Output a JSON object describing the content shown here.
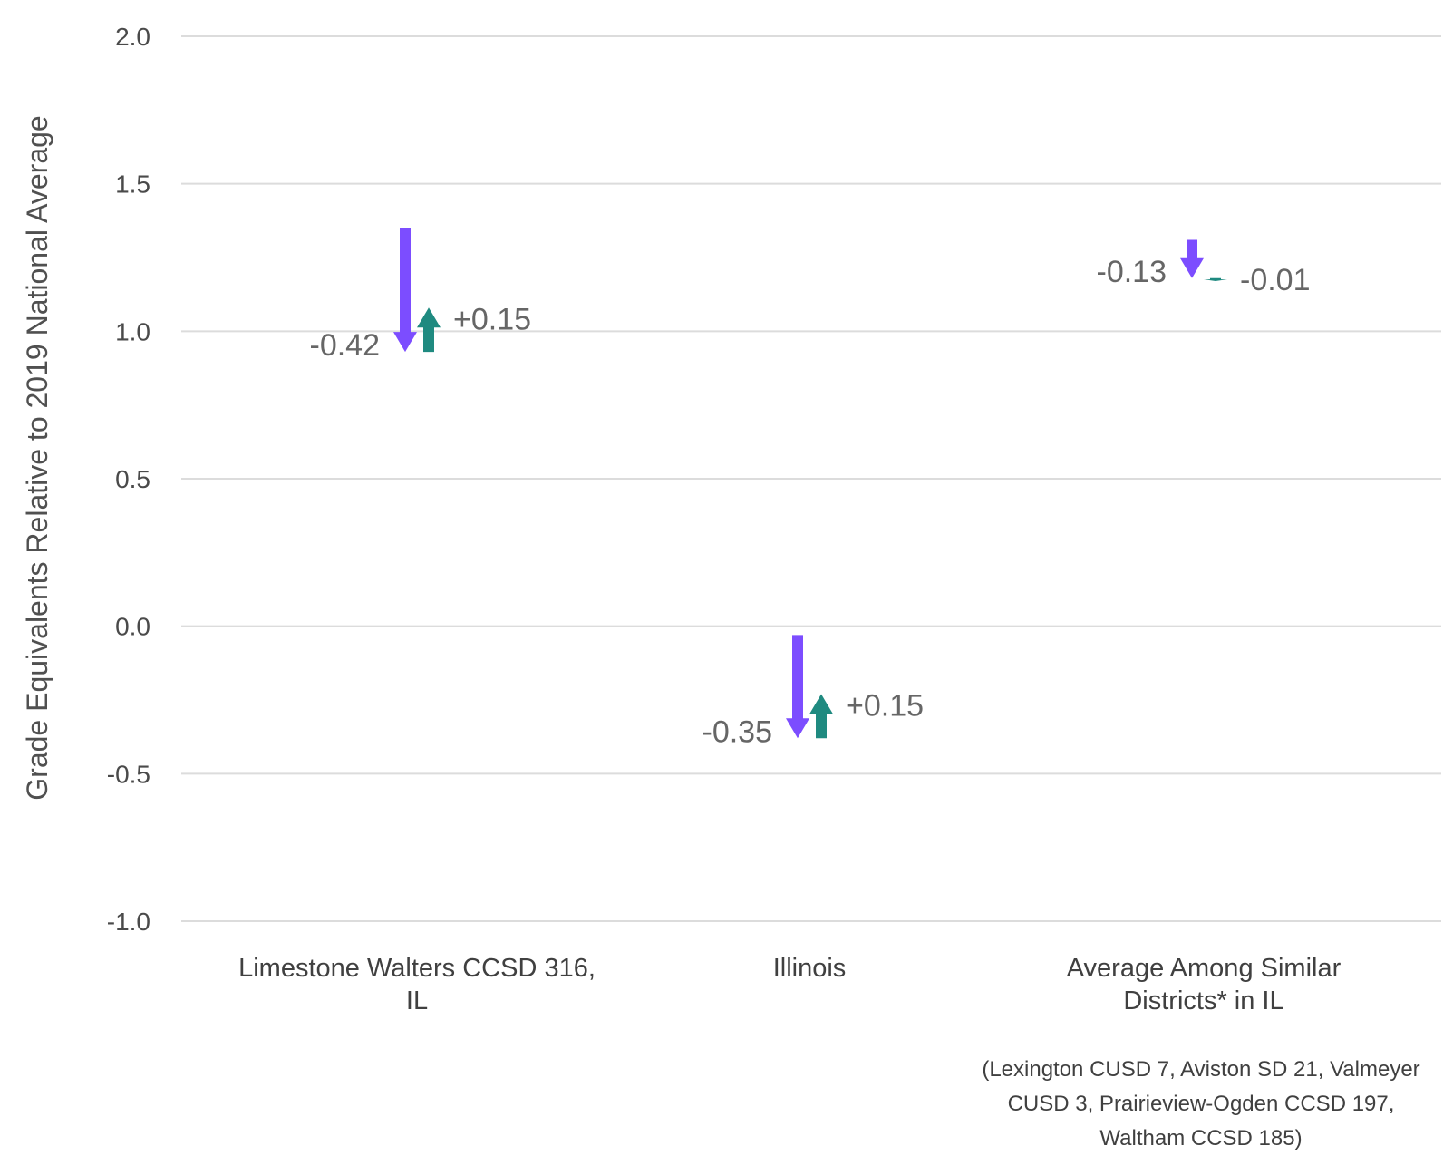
{
  "chart_data": {
    "type": "arrow",
    "ylabel": "Grade Equivalents Relative to 2019 National Average",
    "ylim": [
      -1.0,
      2.0
    ],
    "yticks": [
      "-1.0",
      "-0.5",
      "0.0",
      "0.5",
      "1.0",
      "1.5",
      "2.0"
    ],
    "grid": true,
    "colors": {
      "decline": "#7c4dff",
      "recovery": "#1f8a80"
    },
    "categories": [
      {
        "label_lines": [
          "Limestone Walters CCSD 316,",
          "IL"
        ],
        "start": 1.35,
        "decline": -0.42,
        "recovery": 0.15,
        "decline_label": "-0.42",
        "recovery_label": "+0.15"
      },
      {
        "label_lines": [
          "Illinois"
        ],
        "start": -0.03,
        "decline": -0.35,
        "recovery": 0.15,
        "decline_label": "-0.35",
        "recovery_label": "+0.15"
      },
      {
        "label_lines": [
          "Average Among Similar",
          "Districts* in IL"
        ],
        "start": 1.31,
        "decline": -0.13,
        "recovery": -0.01,
        "decline_label": "-0.13",
        "recovery_label": "-0.01"
      }
    ],
    "footnote_lines": [
      "(Lexington CUSD 7, Aviston SD 21, Valmeyer",
      "CUSD 3, Prairieview-Ogden CCSD 197,",
      "Waltham CCSD 185)"
    ]
  }
}
